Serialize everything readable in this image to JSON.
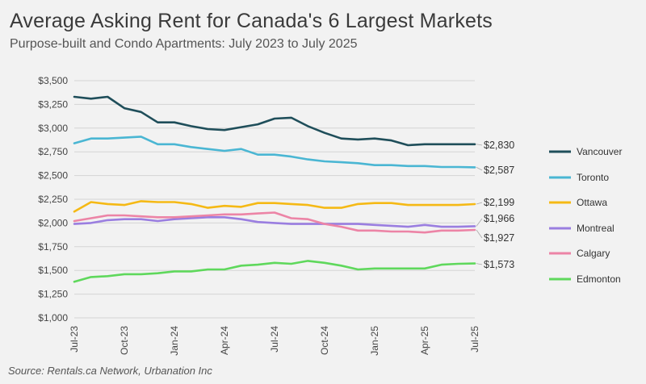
{
  "chart_data": {
    "type": "line",
    "title": "Average Asking Rent for Canada's 6 Largest Markets",
    "subtitle": "Purpose-built and Condo Apartments: July 2023 to July 2025",
    "source": "Source: Rentals.ca Network, Urbanation Inc",
    "x": [
      "Jul-23",
      "Aug-23",
      "Sep-23",
      "Oct-23",
      "Nov-23",
      "Dec-23",
      "Jan-24",
      "Feb-24",
      "Mar-24",
      "Apr-24",
      "May-24",
      "Jun-24",
      "Jul-24",
      "Aug-24",
      "Sep-24",
      "Oct-24",
      "Nov-24",
      "Dec-24",
      "Jan-25",
      "Feb-25",
      "Mar-25",
      "Apr-25",
      "May-25",
      "Jun-25",
      "Jul-25"
    ],
    "xticks": [
      "Jul-23",
      "Oct-23",
      "Jan-24",
      "Apr-24",
      "Jul-24",
      "Oct-24",
      "Jan-25",
      "Apr-25",
      "Jul-25"
    ],
    "yticks": [
      "$1,000",
      "$1,250",
      "$1,500",
      "$1,750",
      "$2,000",
      "$2,250",
      "$2,500",
      "$2,750",
      "$3,000",
      "$3,250",
      "$3,500"
    ],
    "ylim": [
      1000,
      3500
    ],
    "grid": true,
    "legend_position": "right",
    "series": [
      {
        "name": "Vancouver",
        "color": "#1f4e5a",
        "end_label": "$2,830",
        "values": [
          3330,
          3310,
          3330,
          3210,
          3170,
          3060,
          3060,
          3020,
          2990,
          2980,
          3010,
          3040,
          3100,
          3110,
          3020,
          2950,
          2890,
          2880,
          2890,
          2870,
          2820,
          2830,
          2830,
          2830,
          2830
        ]
      },
      {
        "name": "Toronto",
        "color": "#4ab6d3",
        "end_label": "$2,587",
        "values": [
          2840,
          2890,
          2890,
          2900,
          2910,
          2830,
          2830,
          2800,
          2780,
          2760,
          2780,
          2720,
          2720,
          2700,
          2670,
          2650,
          2640,
          2630,
          2610,
          2610,
          2600,
          2600,
          2590,
          2590,
          2587
        ]
      },
      {
        "name": "Ottawa",
        "color": "#f5b915",
        "end_label": "$2,199",
        "values": [
          2120,
          2220,
          2200,
          2190,
          2230,
          2220,
          2220,
          2200,
          2160,
          2180,
          2170,
          2210,
          2210,
          2200,
          2190,
          2160,
          2160,
          2200,
          2210,
          2210,
          2190,
          2190,
          2190,
          2190,
          2199
        ]
      },
      {
        "name": "Montreal",
        "color": "#9a7ee0",
        "end_label": "$1,966",
        "values": [
          1990,
          2000,
          2030,
          2040,
          2040,
          2020,
          2040,
          2050,
          2060,
          2060,
          2040,
          2010,
          2000,
          1990,
          1990,
          1990,
          1990,
          1990,
          1980,
          1970,
          1960,
          1980,
          1960,
          1960,
          1966
        ]
      },
      {
        "name": "Calgary",
        "color": "#ec84a6",
        "end_label": "$1,927",
        "values": [
          2020,
          2050,
          2080,
          2080,
          2070,
          2060,
          2060,
          2070,
          2080,
          2090,
          2090,
          2100,
          2110,
          2050,
          2040,
          1990,
          1960,
          1920,
          1920,
          1910,
          1910,
          1900,
          1920,
          1920,
          1927
        ]
      },
      {
        "name": "Edmonton",
        "color": "#5fd85c",
        "end_label": "$1,573",
        "values": [
          1380,
          1430,
          1440,
          1460,
          1460,
          1470,
          1490,
          1490,
          1510,
          1510,
          1550,
          1560,
          1580,
          1570,
          1600,
          1580,
          1550,
          1510,
          1520,
          1520,
          1520,
          1520,
          1560,
          1570,
          1573
        ]
      }
    ]
  }
}
